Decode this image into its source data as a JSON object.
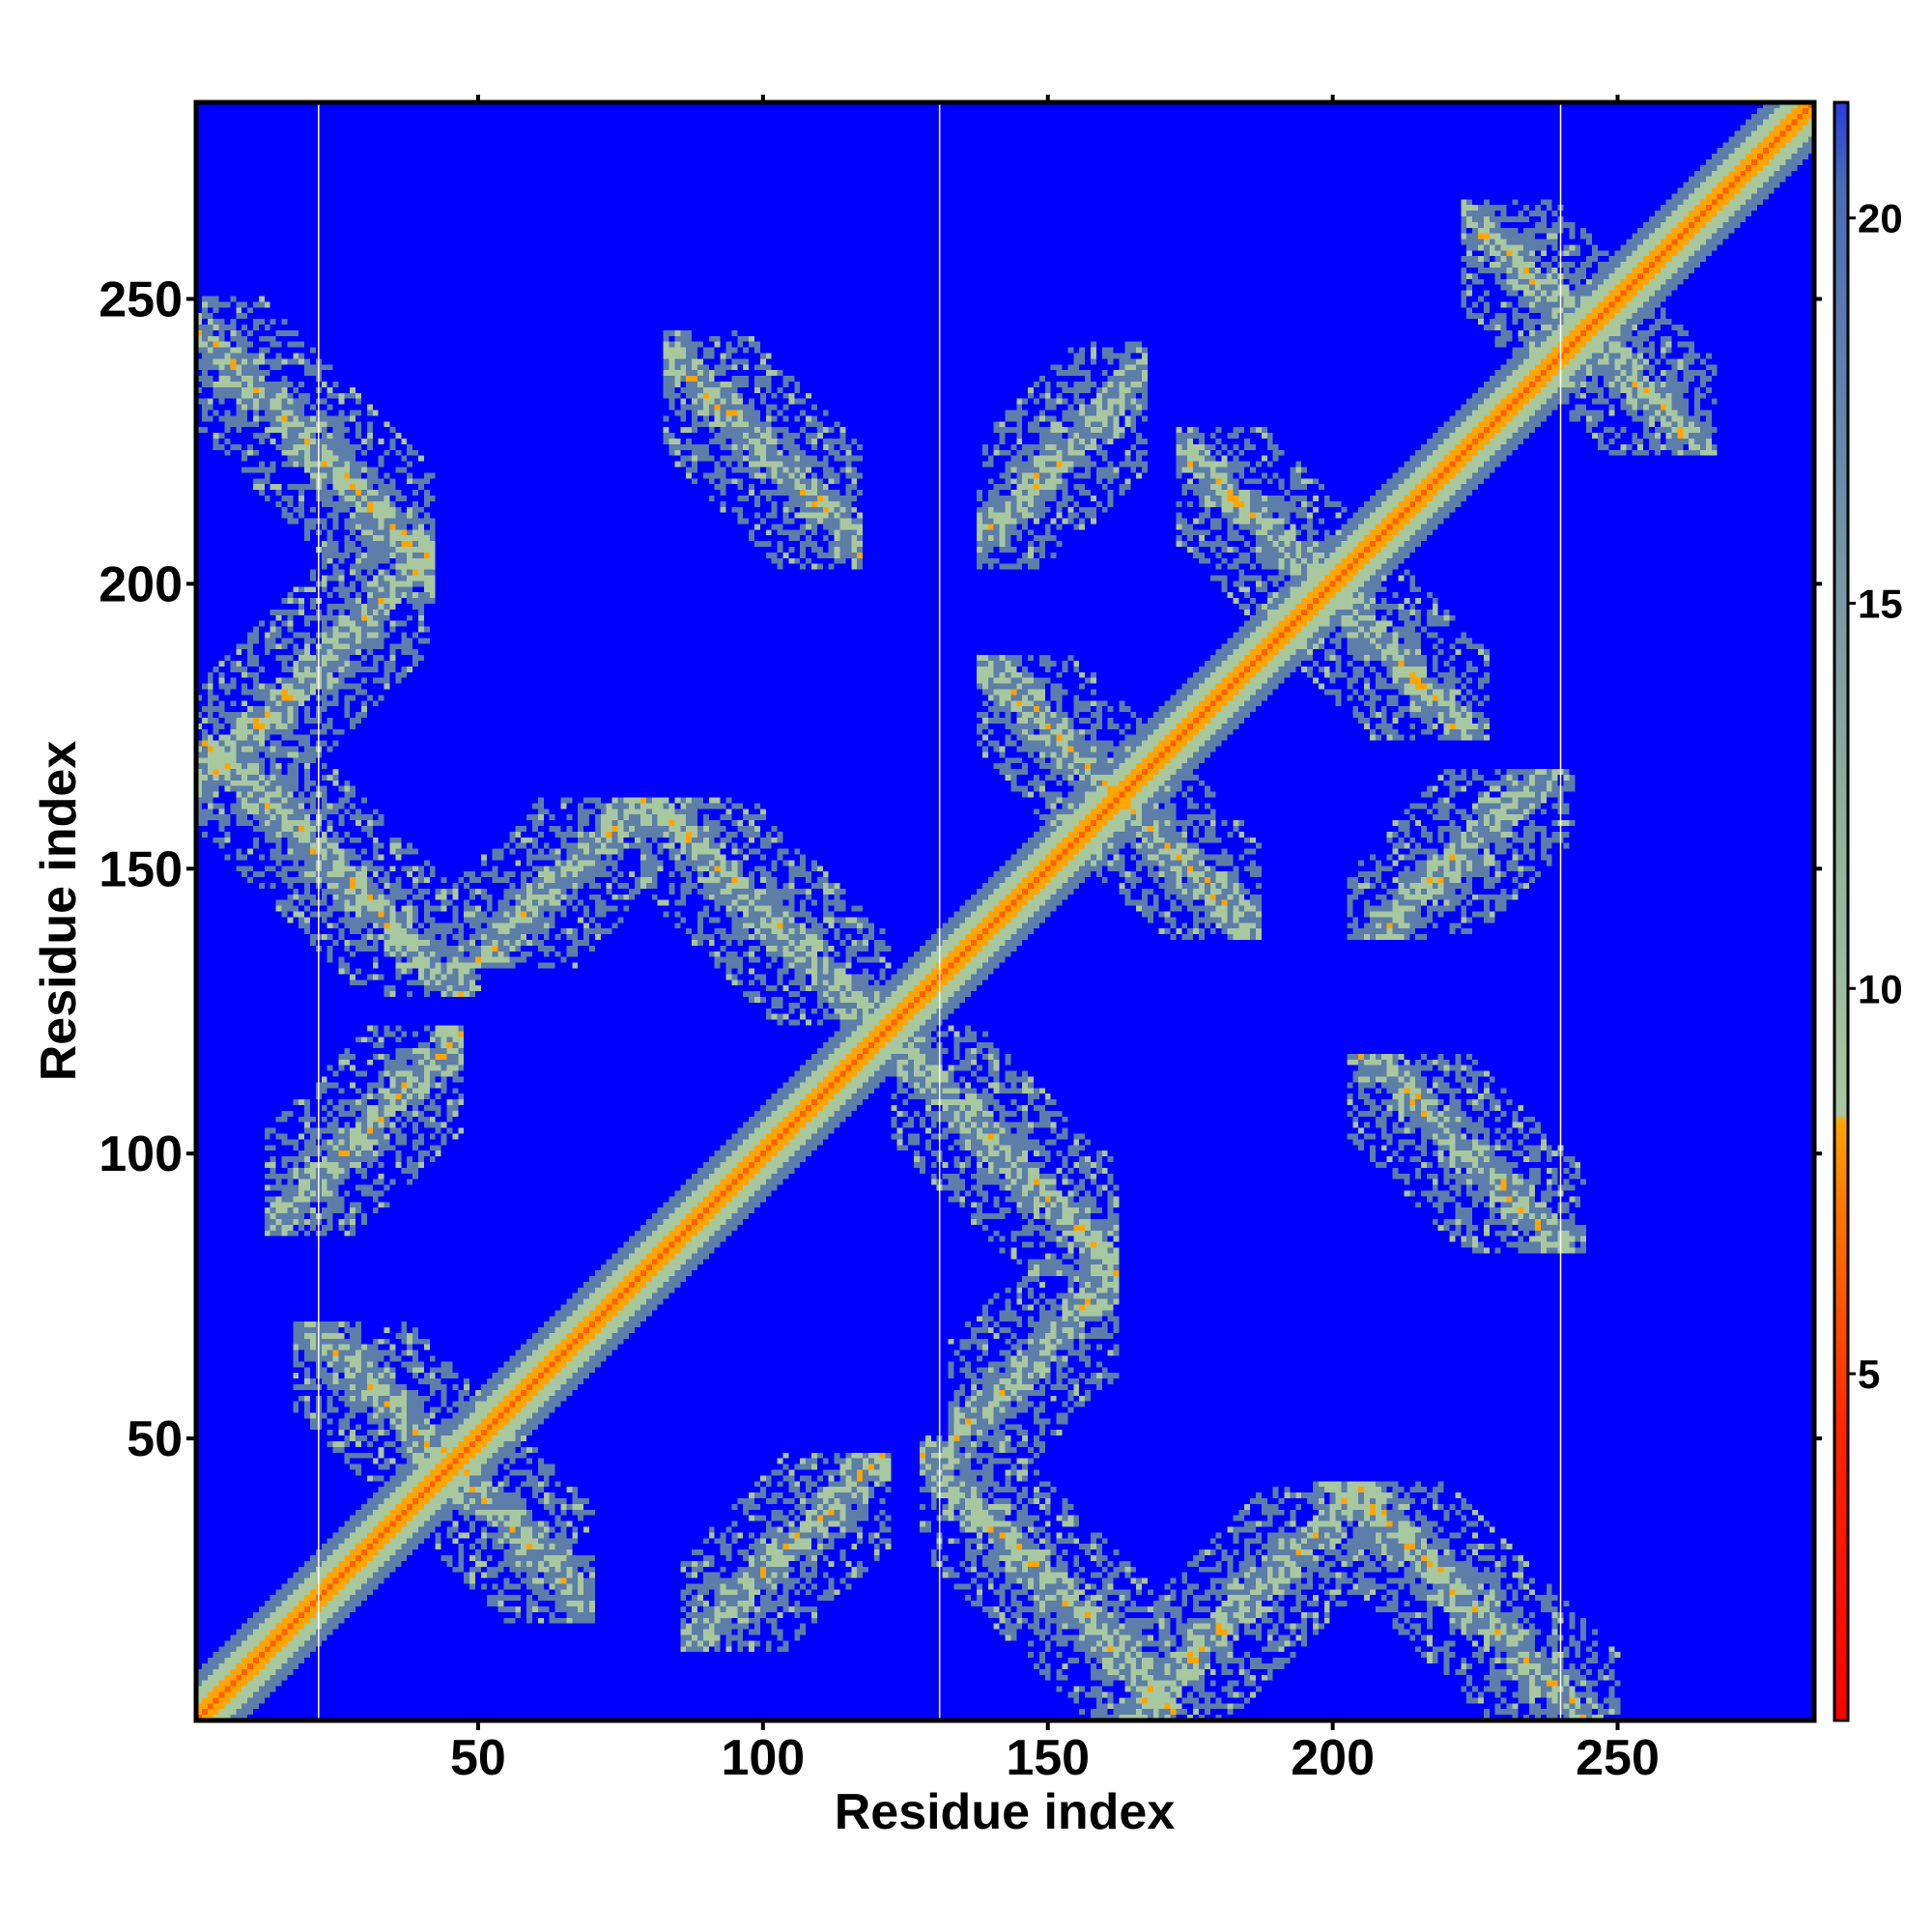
{
  "chart_data": {
    "type": "heatmap",
    "title": "",
    "xlabel": "Residue index",
    "ylabel": "Residue index",
    "xlim": [
      1,
      284
    ],
    "ylim": [
      1,
      284
    ],
    "x_ticks": [
      50,
      100,
      150,
      200,
      250
    ],
    "y_ticks": [
      50,
      100,
      150,
      200,
      250
    ],
    "x_tick_labels": [
      "50",
      "100",
      "150",
      "200",
      "250"
    ],
    "y_tick_labels": [
      "50",
      "100",
      "150",
      "200",
      "250"
    ],
    "grid": false,
    "segment_boundaries": [
      22,
      131,
      240
    ],
    "colorbar": {
      "position": "right",
      "range": [
        0.5,
        21.5
      ],
      "ticks": [
        5,
        10,
        15,
        20
      ],
      "tick_labels": [
        "5",
        "10",
        "15",
        "20"
      ],
      "colors": {
        "red": "#ff0000",
        "dark_orange": "#ff6000",
        "orange": "#ffa500",
        "pale_green": "#a8c8a0",
        "steel_blue": "#5c7ea8",
        "blue": "#0000ff"
      }
    },
    "description_values": {
      "diagonal_distance": 3.8,
      "background_distance": 21,
      "off_diagonal_bands": [
        {
          "x": [
            2,
            40
          ],
          "y": [
            200,
            248
          ],
          "orientation": "anti"
        },
        {
          "x": [
            2,
            40
          ],
          "y": [
            160,
            210
          ],
          "orientation": "diag"
        },
        {
          "x": [
            2,
            48
          ],
          "y": [
            130,
            170
          ],
          "orientation": "anti"
        },
        {
          "x": [
            48,
            80
          ],
          "y": [
            135,
            160
          ],
          "orientation": "diag"
        },
        {
          "x": [
            80,
            120
          ],
          "y": [
            125,
            160
          ],
          "orientation": "anti"
        },
        {
          "x": [
            85,
            115
          ],
          "y": [
            205,
            242
          ],
          "orientation": "anti"
        },
        {
          "x": [
            15,
            45
          ],
          "y": [
            88,
            120
          ],
          "orientation": "diag"
        },
        {
          "x": [
            20,
            65
          ],
          "y": [
            28,
            68
          ],
          "orientation": "anti"
        },
        {
          "x": [
            85,
            115
          ],
          "y": [
            15,
            45
          ],
          "orientation": "diag"
        },
        {
          "x": [
            120,
            165
          ],
          "y": [
            85,
            125
          ],
          "orientation": "anti"
        },
        {
          "x": [
            130,
            160
          ],
          "y": [
            40,
            80
          ],
          "orientation": "diag"
        },
        {
          "x": [
            135,
            170
          ],
          "y": [
            5,
            45
          ],
          "orientation": "anti"
        },
        {
          "x": [
            165,
            200
          ],
          "y": [
            5,
            40
          ],
          "orientation": "diag"
        },
        {
          "x": [
            200,
            245
          ],
          "y": [
            5,
            42
          ],
          "orientation": "anti"
        },
        {
          "x": [
            200,
            245
          ],
          "y": [
            85,
            120
          ],
          "orientation": "anti"
        },
        {
          "x": [
            205,
            240
          ],
          "y": [
            125,
            160
          ],
          "orientation": "diag"
        },
        {
          "x": [
            140,
            175
          ],
          "y": [
            150,
            185
          ],
          "orientation": "anti"
        },
        {
          "x": [
            175,
            215
          ],
          "y": [
            180,
            225
          ],
          "orientation": "anti"
        },
        {
          "x": [
            140,
            165
          ],
          "y": [
            205,
            240
          ],
          "orientation": "diag"
        },
        {
          "x": [
            225,
            262
          ],
          "y": [
            225,
            265
          ],
          "orientation": "anti"
        }
      ]
    }
  }
}
